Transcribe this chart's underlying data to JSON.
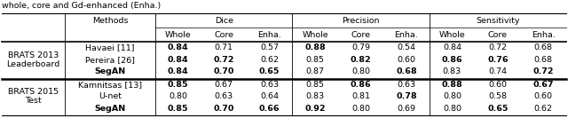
{
  "title_text": "whole, core and Gd-enhanced (Enha.)",
  "groups": [
    {
      "group_label": "BRATS 2013\nLeaderboard",
      "rows": [
        {
          "method": "Havaei [11]",
          "method_bold": false,
          "values": [
            "0.84",
            "0.71",
            "0.57",
            "0.88",
            "0.79",
            "0.54",
            "0.84",
            "0.72",
            "0.68"
          ],
          "bold": [
            true,
            false,
            false,
            true,
            false,
            false,
            false,
            false,
            false
          ]
        },
        {
          "method": "Pereira [26]",
          "method_bold": false,
          "values": [
            "0.84",
            "0.72",
            "0.62",
            "0.85",
            "0.82",
            "0.60",
            "0.86",
            "0.76",
            "0.68"
          ],
          "bold": [
            true,
            true,
            false,
            false,
            true,
            false,
            true,
            true,
            false
          ]
        },
        {
          "method": "SegAN",
          "method_bold": true,
          "values": [
            "0.84",
            "0.70",
            "0.65",
            "0.87",
            "0.80",
            "0.68",
            "0.83",
            "0.74",
            "0.72"
          ],
          "bold": [
            true,
            true,
            true,
            false,
            false,
            true,
            false,
            false,
            true
          ]
        }
      ]
    },
    {
      "group_label": "BRATS 2015\nTest",
      "rows": [
        {
          "method": "Kamnitsas [13]",
          "method_bold": false,
          "values": [
            "0.85",
            "0.67",
            "0.63",
            "0.85",
            "0.86",
            "0.63",
            "0.88",
            "0.60",
            "0.67"
          ],
          "bold": [
            true,
            false,
            false,
            false,
            true,
            false,
            true,
            false,
            true
          ]
        },
        {
          "method": "U-net",
          "method_bold": false,
          "values": [
            "0.80",
            "0.63",
            "0.64",
            "0.83",
            "0.81",
            "0.78",
            "0.80",
            "0.58",
            "0.60"
          ],
          "bold": [
            false,
            false,
            false,
            false,
            false,
            true,
            false,
            false,
            false
          ]
        },
        {
          "method": "SegAN",
          "method_bold": true,
          "values": [
            "0.85",
            "0.70",
            "0.66",
            "0.92",
            "0.80",
            "0.69",
            "0.80",
            "0.65",
            "0.62"
          ],
          "bold": [
            true,
            true,
            true,
            true,
            false,
            false,
            false,
            true,
            false
          ]
        }
      ]
    }
  ],
  "bg_color": "#ffffff",
  "font_size": 6.8
}
